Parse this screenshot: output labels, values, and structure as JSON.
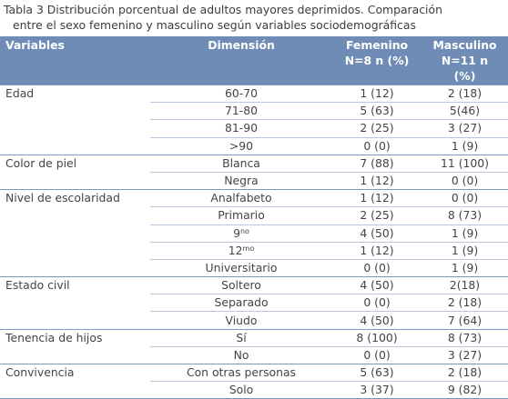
{
  "caption": {
    "line1": "Tabla 3 Distribución  porcentual de adultos  mayores deprimidos.  Comparación",
    "line2": "entre el sexo femenino y masculino  según variables sociodemográficas"
  },
  "headers": {
    "variables": "Variables",
    "dimension": "Dimensión",
    "femenino_l1": "Femenino",
    "femenino_l2": "N=8 n (%)",
    "masculino_l1": "Masculino",
    "masculino_l2": "N=11 n",
    "masculino_l3": "(%)"
  },
  "groups": [
    {
      "variable": "Edad",
      "rows": [
        {
          "dim": "60-70",
          "fem": "1 (12)",
          "mas": "2 (18)"
        },
        {
          "dim": "71-80",
          "fem": "5 (63)",
          "mas": "5(46)"
        },
        {
          "dim": "81-90",
          "fem": "2 (25)",
          "mas": "3 (27)"
        },
        {
          "dim": ">90",
          "fem": "0 (0)",
          "mas": "1 (9)"
        }
      ]
    },
    {
      "variable": "Color de piel",
      "rows": [
        {
          "dim": "Blanca",
          "fem": "7 (88)",
          "mas": "11 (100)"
        },
        {
          "dim": "Negra",
          "fem": "1 (12)",
          "mas": "0 (0)"
        }
      ]
    },
    {
      "variable": "Nivel de escolaridad",
      "rows": [
        {
          "dim": "Analfabeto",
          "fem": "1 (12)",
          "mas": "0 (0)"
        },
        {
          "dim": "Primario",
          "fem": "2 (25)",
          "mas": "8 (73)"
        },
        {
          "dim": "9",
          "sup": "no",
          "fem": "4 (50)",
          "mas": "1 (9)"
        },
        {
          "dim": "12",
          "sup": "mo",
          "fem": "1 (12)",
          "mas": "1 (9)"
        },
        {
          "dim": "Universitario",
          "fem": "0 (0)",
          "mas": "1 (9)"
        }
      ]
    },
    {
      "variable": "Estado civil",
      "rows": [
        {
          "dim": "Soltero",
          "fem": "4 (50)",
          "mas": "2(18)"
        },
        {
          "dim": "Separado",
          "fem": "0 (0)",
          "mas": "2 (18)"
        },
        {
          "dim": "Viudo",
          "fem": "4 (50)",
          "mas": "7 (64)"
        }
      ]
    },
    {
      "variable": "Tenencia de hijos",
      "rows": [
        {
          "dim": "Sí",
          "fem": "8 (100)",
          "mas": "8 (73)"
        },
        {
          "dim": "No",
          "fem": "0 (0)",
          "mas": "3 (27)"
        }
      ]
    },
    {
      "variable": "Convivencia",
      "rows": [
        {
          "dim": "Con otras personas",
          "fem": "5 (63)",
          "mas": "2 (18)"
        },
        {
          "dim": "Solo",
          "fem": "3 (37)",
          "mas": "9 (82)"
        }
      ]
    }
  ]
}
